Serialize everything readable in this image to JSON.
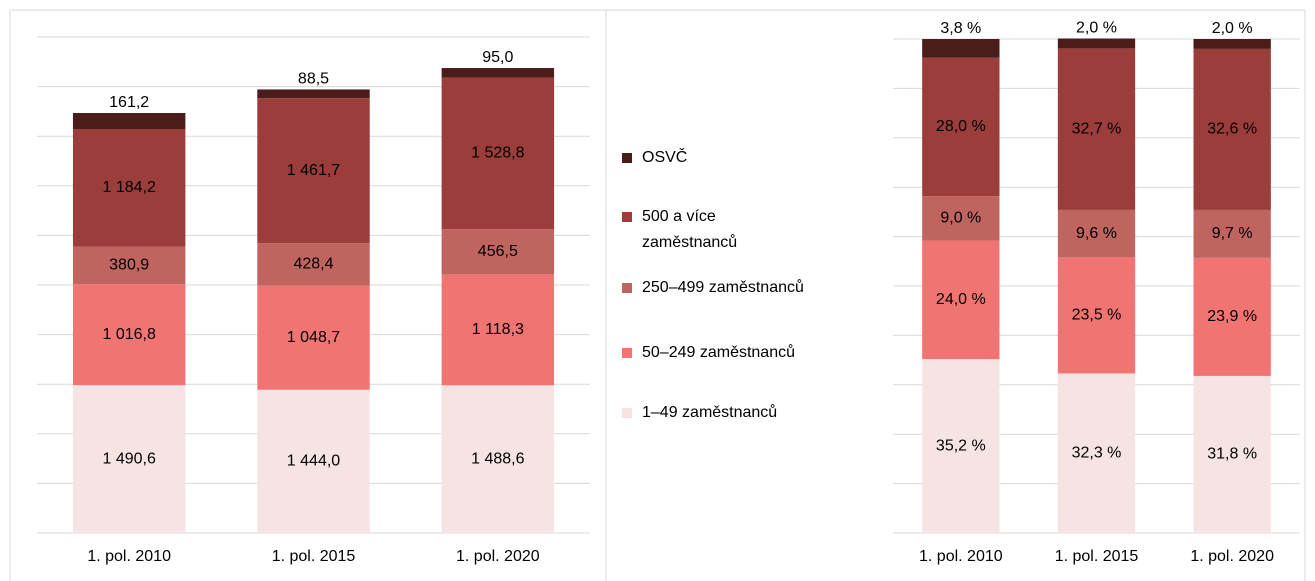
{
  "chart_data": [
    {
      "type": "stacked_bar",
      "categories": [
        "1. pol. 2010",
        "1. pol. 2015",
        "1. pol. 2020"
      ],
      "ylim": [
        0,
        5000
      ],
      "yticks": [
        0,
        500,
        1000,
        1500,
        2000,
        2500,
        3000,
        3500,
        4000,
        4500,
        5000
      ],
      "tick_labels": false,
      "grid": true,
      "legend": "right",
      "series": [
        {
          "name": "1–49 zaměstnanců",
          "color": "#f6e4e4",
          "values": [
            1490.6,
            1444.0,
            1488.6
          ],
          "value_labels": [
            "1 490,6",
            "1 444,0",
            "1 488,6"
          ]
        },
        {
          "name": "50–249 zaměstnanců",
          "color": "#ef7472",
          "values": [
            1016.8,
            1048.7,
            1118.3
          ],
          "value_labels": [
            "1 016,8",
            "1 048,7",
            "1 118,3"
          ]
        },
        {
          "name": "250–499 zaměstnanců",
          "color": "#c06460",
          "values": [
            380.9,
            428.4,
            456.5
          ],
          "value_labels": [
            "380,9",
            "428,4",
            "456,5"
          ]
        },
        {
          "name": "500 a více zaměstnanců",
          "color": "#9b3d3a",
          "values": [
            1184.2,
            1461.7,
            1528.8
          ],
          "value_labels": [
            "1 184,2",
            "1 461,7",
            "1 528,8"
          ]
        },
        {
          "name": "OSVČ",
          "color": "#4a1c1a",
          "values": [
            161.2,
            88.5,
            95.0
          ],
          "value_labels": [
            "161,2",
            "88,5",
            "95,0"
          ]
        }
      ]
    },
    {
      "type": "stacked_bar",
      "categories": [
        "1. pol. 2010",
        "1. pol. 2015",
        "1. pol. 2020"
      ],
      "ylim": [
        0,
        100
      ],
      "yticks": [
        0,
        10,
        20,
        30,
        40,
        50,
        60,
        70,
        80,
        90,
        100
      ],
      "tick_labels": false,
      "grid": true,
      "series": [
        {
          "color": "#f6e4e4",
          "values": [
            35.2,
            32.3,
            31.8
          ],
          "value_labels": [
            "35,2 %",
            "32,3 %",
            "31,8 %"
          ]
        },
        {
          "color": "#ef7472",
          "values": [
            24.0,
            23.5,
            23.9
          ],
          "value_labels": [
            "24,0 %",
            "23,5 %",
            "23,9 %"
          ]
        },
        {
          "color": "#c06460",
          "values": [
            9.0,
            9.6,
            9.7
          ],
          "value_labels": [
            "9,0 %",
            "9,6 %",
            "9,7 %"
          ]
        },
        {
          "color": "#9b3d3a",
          "values": [
            28.0,
            32.7,
            32.6
          ],
          "value_labels": [
            "28,0 %",
            "32,7 %",
            "32,6 %"
          ]
        },
        {
          "color": "#4a1c1a",
          "values": [
            3.8,
            2.0,
            2.0
          ],
          "value_labels": [
            "3,8 %",
            "2,0 %",
            "2,0 %"
          ]
        }
      ]
    }
  ]
}
